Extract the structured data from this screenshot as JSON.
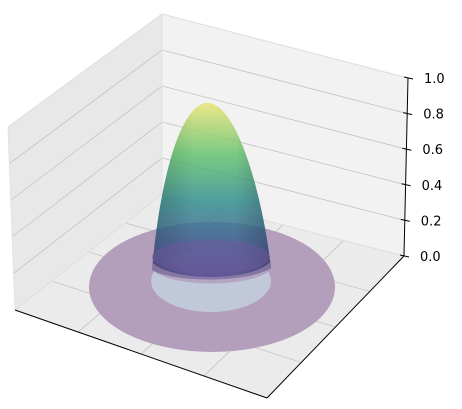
{
  "chart_data": {
    "type": "surface",
    "title": "",
    "xlabel": "",
    "ylabel": "",
    "zlabel": "",
    "zlim": [
      0,
      1
    ],
    "z_ticks": [
      0.0,
      0.2,
      0.4,
      0.6,
      0.8,
      1.0
    ],
    "z_tick_labels": [
      "0.0",
      "0.2",
      "0.4",
      "0.6",
      "0.8",
      "1.0"
    ],
    "x_ticks_visible": false,
    "y_ticks_visible": false,
    "grid": true,
    "colormap": "viridis",
    "alpha": 0.4,
    "surfaces": [
      {
        "shape": "paraboloid-dome",
        "peak_z": 0.9,
        "base_z": 0.0,
        "base_radius_fraction": 0.5
      },
      {
        "shape": "flat-disk",
        "z": 0.0,
        "radius_fraction": 1.0,
        "color": "#b39ebb"
      }
    ],
    "colors": {
      "pane_back": "#f2f2f2",
      "pane_side": "#e6e6e6",
      "pane_floor": "#ebebeb",
      "grid": "#c7c7c7",
      "disk": "#b39ebb",
      "inner_disk": "#c4d6e4"
    }
  }
}
